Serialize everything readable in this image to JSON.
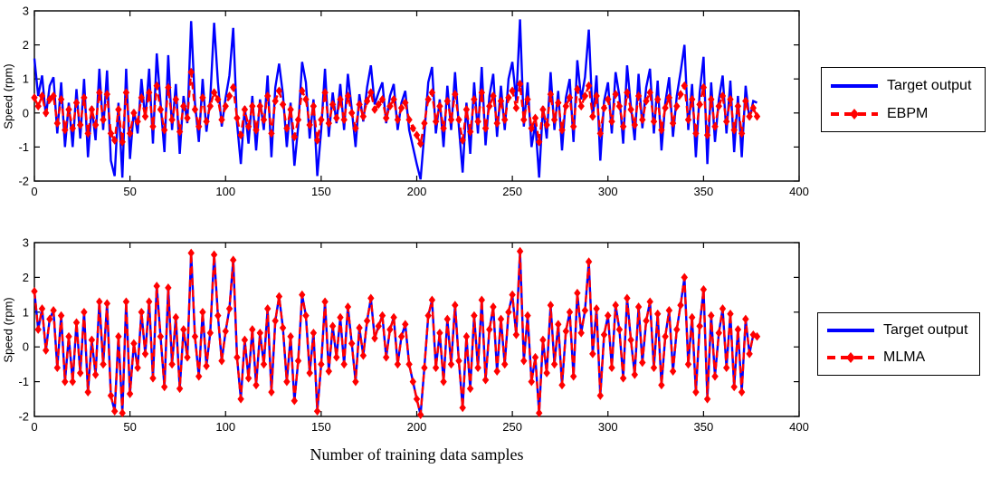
{
  "figure": {
    "background": "#ffffff",
    "axis_color": "#000000",
    "blue": "#0000ff",
    "red": "#ff0000"
  },
  "chart_data": [
    {
      "type": "line",
      "title": "",
      "xlabel": "",
      "ylabel": "Speed (rpm)",
      "xlim": [
        0,
        400
      ],
      "ylim": [
        -2,
        3
      ],
      "xticks": [
        "0",
        "50",
        "100",
        "150",
        "200",
        "250",
        "300",
        "350",
        "400"
      ],
      "yticks": [
        "-2",
        "-1",
        "0",
        "1",
        "2",
        "3"
      ],
      "grid": false,
      "x_start": 0,
      "x_step": 2,
      "legend": {
        "position": "outside-right",
        "entries": [
          {
            "label": "Target output",
            "color": "#0000ff",
            "style": "solid"
          },
          {
            "label": "EBPM",
            "color": "#ff0000",
            "style": "dashed-diamond"
          }
        ]
      },
      "series": [
        {
          "name": "Target output",
          "color": "#0000ff",
          "style": "solid",
          "values": [
            1.6,
            0.5,
            1.1,
            -0.1,
            0.8,
            1.05,
            -0.6,
            0.9,
            -1.0,
            0.3,
            -1.0,
            0.7,
            -0.75,
            1.0,
            -1.3,
            0.2,
            -0.8,
            1.3,
            -0.5,
            1.25,
            -1.4,
            -1.85,
            0.3,
            -1.9,
            1.3,
            -1.35,
            0.1,
            -0.6,
            1.0,
            -0.2,
            1.3,
            -0.9,
            1.75,
            0.3,
            -1.15,
            1.7,
            -0.5,
            0.85,
            -1.2,
            0.5,
            -0.3,
            2.7,
            0.3,
            -0.85,
            1.0,
            -0.55,
            0.4,
            2.65,
            0.9,
            -0.4,
            0.45,
            1.1,
            2.5,
            -0.3,
            -1.5,
            0.2,
            -0.9,
            0.5,
            -1.1,
            0.4,
            -0.5,
            1.1,
            -1.3,
            0.75,
            1.45,
            0.55,
            -1.0,
            0.3,
            -1.55,
            -0.4,
            1.5,
            0.9,
            -0.75,
            0.4,
            -1.85,
            -0.5,
            1.3,
            -0.7,
            0.6,
            -0.3,
            0.85,
            -0.5,
            1.15,
            0.1,
            -1.0,
            0.55,
            -0.25,
            0.75,
            1.4,
            0.25,
            0.6,
            0.9,
            -0.3,
            0.5,
            0.85,
            -0.5,
            0.3,
            0.65,
            -0.5,
            -1.0,
            -1.5,
            -1.95,
            -0.6,
            0.9,
            1.35,
            -0.6,
            0.4,
            -1.0,
            0.8,
            -0.5,
            1.2,
            -0.4,
            -1.75,
            0.3,
            -1.2,
            0.9,
            -0.6,
            1.35,
            -0.95,
            0.5,
            1.15,
            -0.7,
            0.8,
            -0.5,
            1.0,
            1.5,
            0.35,
            2.75,
            -0.4,
            0.9,
            -1.0,
            -0.3,
            -1.9,
            0.2,
            -0.75,
            1.2,
            -0.5,
            0.65,
            -1.1,
            0.45,
            1.0,
            -0.85,
            1.55,
            0.4,
            1.05,
            2.45,
            -0.2,
            1.1,
            -1.4,
            0.35,
            0.9,
            -0.6,
            1.2,
            0.5,
            -0.9,
            1.4,
            0.2,
            -0.8,
            1.15,
            -0.45,
            0.75,
            1.3,
            -0.6,
            0.95,
            -1.1,
            0.3,
            1.05,
            -0.7,
            0.5,
            1.2,
            2.0,
            -0.5,
            0.85,
            -1.3,
            0.6,
            1.65,
            -1.5,
            0.9,
            -0.85,
            0.4,
            1.1,
            -0.6,
            0.95,
            -1.15,
            0.5,
            -1.3,
            0.8,
            -0.2,
            0.35,
            0.3
          ]
        },
        {
          "name": "EBPM",
          "color": "#ff0000",
          "style": "dashed-diamond",
          "values": [
            0.45,
            0.2,
            0.5,
            0.0,
            0.4,
            0.5,
            -0.3,
            0.4,
            -0.5,
            0.1,
            -0.45,
            0.3,
            -0.35,
            0.45,
            -0.6,
            0.1,
            -0.35,
            0.6,
            -0.2,
            0.55,
            -0.6,
            -0.8,
            0.1,
            -0.85,
            0.6,
            -0.6,
            0.0,
            -0.25,
            0.45,
            -0.1,
            0.6,
            -0.4,
            0.8,
            0.1,
            -0.5,
            0.75,
            -0.2,
            0.4,
            -0.55,
            0.2,
            -0.15,
            1.2,
            0.1,
            -0.4,
            0.45,
            -0.25,
            0.2,
            0.6,
            0.4,
            -0.2,
            0.2,
            0.5,
            0.75,
            -0.15,
            -0.65,
            0.1,
            -0.4,
            0.2,
            -0.5,
            0.2,
            -0.2,
            0.5,
            -0.6,
            0.35,
            0.65,
            0.25,
            -0.45,
            0.1,
            -0.7,
            -0.2,
            0.65,
            0.4,
            -0.35,
            0.2,
            -0.8,
            -0.2,
            0.6,
            -0.3,
            0.25,
            -0.15,
            0.4,
            -0.2,
            0.5,
            0.0,
            -0.45,
            0.25,
            -0.1,
            0.35,
            0.6,
            0.1,
            0.25,
            0.4,
            -0.15,
            0.2,
            0.4,
            -0.2,
            0.15,
            0.3,
            -0.2,
            -0.45,
            -0.65,
            -0.9,
            -0.3,
            0.4,
            0.6,
            -0.25,
            0.2,
            -0.45,
            0.35,
            -0.2,
            0.55,
            -0.2,
            -0.8,
            0.1,
            -0.55,
            0.4,
            -0.25,
            0.6,
            -0.45,
            0.2,
            0.5,
            -0.3,
            0.35,
            -0.2,
            0.45,
            0.65,
            0.15,
            0.85,
            -0.2,
            0.4,
            -0.45,
            -0.15,
            -0.85,
            0.1,
            -0.35,
            0.55,
            -0.2,
            0.3,
            -0.5,
            0.2,
            0.45,
            -0.4,
            0.7,
            0.2,
            0.5,
            0.8,
            -0.1,
            0.5,
            -0.6,
            0.15,
            0.4,
            -0.25,
            0.55,
            0.2,
            -0.4,
            0.6,
            0.1,
            -0.35,
            0.5,
            -0.2,
            0.35,
            0.6,
            -0.25,
            0.4,
            -0.5,
            0.15,
            0.45,
            -0.3,
            0.2,
            0.55,
            0.8,
            -0.2,
            0.4,
            -0.6,
            0.25,
            0.75,
            -0.65,
            0.4,
            -0.4,
            0.2,
            0.5,
            -0.25,
            0.4,
            -0.5,
            0.2,
            -0.6,
            0.35,
            -0.1,
            0.15,
            -0.1
          ]
        }
      ]
    },
    {
      "type": "line",
      "title": "",
      "xlabel": "Number of training data samples",
      "ylabel": "Speed (rpm)",
      "xlim": [
        0,
        400
      ],
      "ylim": [
        -2,
        3
      ],
      "xticks": [
        "0",
        "50",
        "100",
        "150",
        "200",
        "250",
        "300",
        "350",
        "400"
      ],
      "yticks": [
        "-2",
        "-1",
        "0",
        "1",
        "2",
        "3"
      ],
      "grid": false,
      "x_start": 0,
      "x_step": 2,
      "legend": {
        "position": "outside-right",
        "entries": [
          {
            "label": "Target output",
            "color": "#0000ff",
            "style": "solid"
          },
          {
            "label": "MLMA",
            "color": "#ff0000",
            "style": "dashed-diamond"
          }
        ]
      },
      "series": [
        {
          "name": "Target output",
          "color": "#0000ff",
          "style": "solid",
          "values": [
            1.6,
            0.5,
            1.1,
            -0.1,
            0.8,
            1.05,
            -0.6,
            0.9,
            -1.0,
            0.3,
            -1.0,
            0.7,
            -0.75,
            1.0,
            -1.3,
            0.2,
            -0.8,
            1.3,
            -0.5,
            1.25,
            -1.4,
            -1.85,
            0.3,
            -1.9,
            1.3,
            -1.35,
            0.1,
            -0.6,
            1.0,
            -0.2,
            1.3,
            -0.9,
            1.75,
            0.3,
            -1.15,
            1.7,
            -0.5,
            0.85,
            -1.2,
            0.5,
            -0.3,
            2.7,
            0.3,
            -0.85,
            1.0,
            -0.55,
            0.4,
            2.65,
            0.9,
            -0.4,
            0.45,
            1.1,
            2.5,
            -0.3,
            -1.5,
            0.2,
            -0.9,
            0.5,
            -1.1,
            0.4,
            -0.5,
            1.1,
            -1.3,
            0.75,
            1.45,
            0.55,
            -1.0,
            0.3,
            -1.55,
            -0.4,
            1.5,
            0.9,
            -0.75,
            0.4,
            -1.85,
            -0.5,
            1.3,
            -0.7,
            0.6,
            -0.3,
            0.85,
            -0.5,
            1.15,
            0.1,
            -1.0,
            0.55,
            -0.25,
            0.75,
            1.4,
            0.25,
            0.6,
            0.9,
            -0.3,
            0.5,
            0.85,
            -0.5,
            0.3,
            0.65,
            -0.5,
            -1.0,
            -1.5,
            -1.95,
            -0.6,
            0.9,
            1.35,
            -0.6,
            0.4,
            -1.0,
            0.8,
            -0.5,
            1.2,
            -0.4,
            -1.75,
            0.3,
            -1.2,
            0.9,
            -0.6,
            1.35,
            -0.95,
            0.5,
            1.15,
            -0.7,
            0.8,
            -0.5,
            1.0,
            1.5,
            0.35,
            2.75,
            -0.4,
            0.9,
            -1.0,
            -0.3,
            -1.9,
            0.2,
            -0.75,
            1.2,
            -0.5,
            0.65,
            -1.1,
            0.45,
            1.0,
            -0.85,
            1.55,
            0.4,
            1.05,
            2.45,
            -0.2,
            1.1,
            -1.4,
            0.35,
            0.9,
            -0.6,
            1.2,
            0.5,
            -0.9,
            1.4,
            0.2,
            -0.8,
            1.15,
            -0.45,
            0.75,
            1.3,
            -0.6,
            0.95,
            -1.1,
            0.3,
            1.05,
            -0.7,
            0.5,
            1.2,
            2.0,
            -0.5,
            0.85,
            -1.3,
            0.6,
            1.65,
            -1.5,
            0.9,
            -0.85,
            0.4,
            1.1,
            -0.6,
            0.95,
            -1.15,
            0.5,
            -1.3,
            0.8,
            -0.2,
            0.35,
            0.3
          ]
        },
        {
          "name": "MLMA",
          "color": "#ff0000",
          "style": "dashed-diamond",
          "values": [
            1.6,
            0.5,
            1.1,
            -0.1,
            0.8,
            1.05,
            -0.6,
            0.9,
            -1.0,
            0.3,
            -1.0,
            0.7,
            -0.75,
            1.0,
            -1.3,
            0.2,
            -0.8,
            1.3,
            -0.5,
            1.25,
            -1.4,
            -1.85,
            0.3,
            -1.9,
            1.3,
            -1.35,
            0.1,
            -0.6,
            1.0,
            -0.2,
            1.3,
            -0.9,
            1.75,
            0.3,
            -1.15,
            1.7,
            -0.5,
            0.85,
            -1.2,
            0.5,
            -0.3,
            2.7,
            0.3,
            -0.85,
            1.0,
            -0.55,
            0.4,
            2.65,
            0.9,
            -0.4,
            0.45,
            1.1,
            2.5,
            -0.3,
            -1.5,
            0.2,
            -0.9,
            0.5,
            -1.1,
            0.4,
            -0.5,
            1.1,
            -1.3,
            0.75,
            1.45,
            0.55,
            -1.0,
            0.3,
            -1.55,
            -0.4,
            1.5,
            0.9,
            -0.75,
            0.4,
            -1.85,
            -0.5,
            1.3,
            -0.7,
            0.6,
            -0.3,
            0.85,
            -0.5,
            1.15,
            0.1,
            -1.0,
            0.55,
            -0.25,
            0.75,
            1.4,
            0.25,
            0.6,
            0.9,
            -0.3,
            0.5,
            0.85,
            -0.5,
            0.3,
            0.65,
            -0.5,
            -1.0,
            -1.5,
            -1.95,
            -0.6,
            0.9,
            1.35,
            -0.6,
            0.4,
            -1.0,
            0.8,
            -0.5,
            1.2,
            -0.4,
            -1.75,
            0.3,
            -1.2,
            0.9,
            -0.6,
            1.35,
            -0.95,
            0.5,
            1.15,
            -0.7,
            0.8,
            -0.5,
            1.0,
            1.5,
            0.35,
            2.75,
            -0.4,
            0.9,
            -1.0,
            -0.3,
            -1.9,
            0.2,
            -0.75,
            1.2,
            -0.5,
            0.65,
            -1.1,
            0.45,
            1.0,
            -0.85,
            1.55,
            0.4,
            1.05,
            2.45,
            -0.2,
            1.1,
            -1.4,
            0.35,
            0.9,
            -0.6,
            1.2,
            0.5,
            -0.9,
            1.4,
            0.2,
            -0.8,
            1.15,
            -0.45,
            0.75,
            1.3,
            -0.6,
            0.95,
            -1.1,
            0.3,
            1.05,
            -0.7,
            0.5,
            1.2,
            2.0,
            -0.5,
            0.85,
            -1.3,
            0.6,
            1.65,
            -1.5,
            0.9,
            -0.85,
            0.4,
            1.1,
            -0.6,
            0.95,
            -1.15,
            0.5,
            -1.3,
            0.8,
            -0.2,
            0.35,
            0.3
          ]
        }
      ]
    }
  ]
}
